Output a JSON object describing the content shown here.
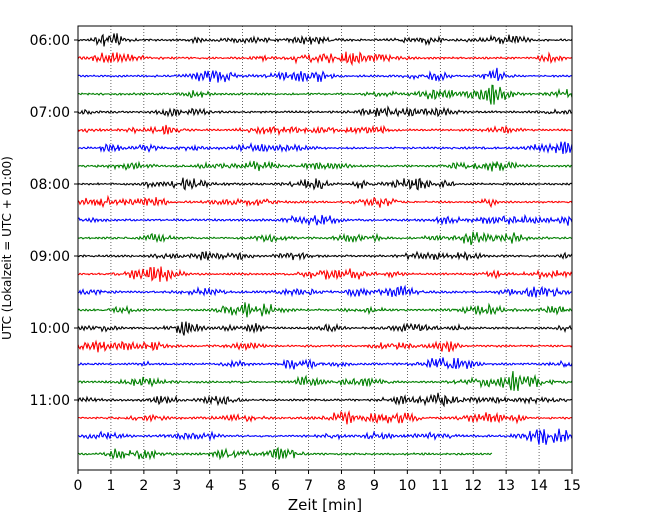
{
  "chart_data": {
    "type": "line",
    "title": "",
    "xlabel": "Zeit  [min]",
    "ylabel": "UTC (Lokalzeit = UTC + 01:00)",
    "xlim": [
      0,
      15
    ],
    "x_ticks": [
      "0",
      "1",
      "2",
      "3",
      "4",
      "5",
      "6",
      "7",
      "8",
      "9",
      "10",
      "11",
      "12",
      "13",
      "14",
      "15"
    ],
    "y_tick_labels": [
      "06:00",
      "07:00",
      "08:00",
      "09:00",
      "10:00",
      "11:00"
    ],
    "grid": "vertical dotted",
    "rows_per_hour": 4,
    "row_minutes": 15,
    "series": [
      {
        "start": "06:00",
        "end_min": 15,
        "color": "#000000"
      },
      {
        "start": "06:15",
        "end_min": 15,
        "color": "#ff0000"
      },
      {
        "start": "06:30",
        "end_min": 15,
        "color": "#0000ff"
      },
      {
        "start": "06:45",
        "end_min": 15,
        "color": "#008000"
      },
      {
        "start": "07:00",
        "end_min": 15,
        "color": "#000000"
      },
      {
        "start": "07:15",
        "end_min": 15,
        "color": "#ff0000"
      },
      {
        "start": "07:30",
        "end_min": 15,
        "color": "#0000ff"
      },
      {
        "start": "07:45",
        "end_min": 15,
        "color": "#008000"
      },
      {
        "start": "08:00",
        "end_min": 15,
        "color": "#000000"
      },
      {
        "start": "08:15",
        "end_min": 15,
        "color": "#ff0000"
      },
      {
        "start": "08:30",
        "end_min": 15,
        "color": "#0000ff"
      },
      {
        "start": "08:45",
        "end_min": 15,
        "color": "#008000"
      },
      {
        "start": "09:00",
        "end_min": 15,
        "color": "#000000"
      },
      {
        "start": "09:15",
        "end_min": 15,
        "color": "#ff0000"
      },
      {
        "start": "09:30",
        "end_min": 15,
        "color": "#0000ff"
      },
      {
        "start": "09:45",
        "end_min": 15,
        "color": "#008000"
      },
      {
        "start": "10:00",
        "end_min": 15,
        "color": "#000000"
      },
      {
        "start": "10:15",
        "end_min": 15,
        "color": "#ff0000"
      },
      {
        "start": "10:30",
        "end_min": 15,
        "color": "#0000ff"
      },
      {
        "start": "10:45",
        "end_min": 15,
        "color": "#008000"
      },
      {
        "start": "11:00",
        "end_min": 15,
        "color": "#000000"
      },
      {
        "start": "11:15",
        "end_min": 15,
        "color": "#ff0000"
      },
      {
        "start": "11:30",
        "end_min": 15,
        "color": "#0000ff"
      },
      {
        "start": "11:45",
        "end_min": 12.6,
        "color": "#008000"
      }
    ]
  }
}
